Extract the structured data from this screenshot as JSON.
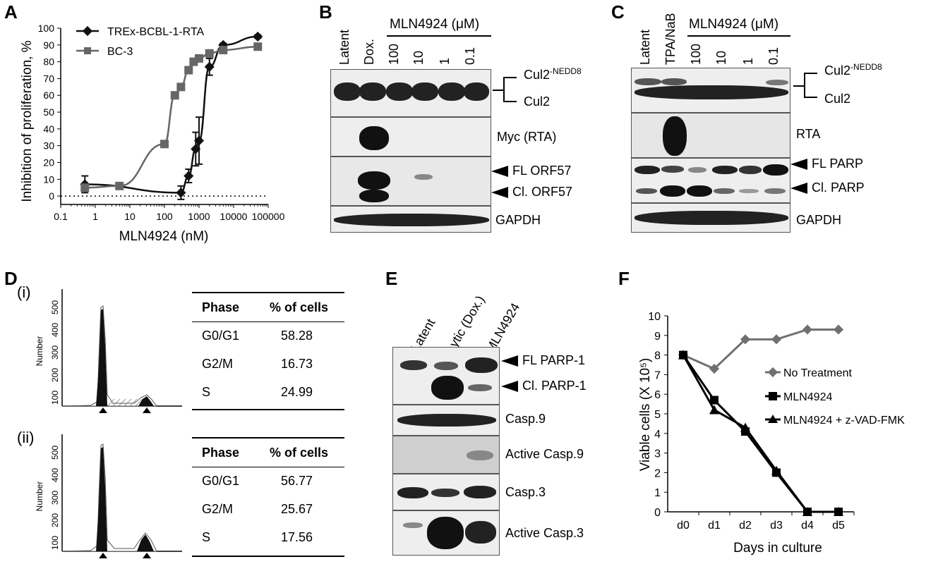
{
  "panels": {
    "a": "A",
    "b": "B",
    "c": "C",
    "d": "D",
    "e": "E",
    "f": "F",
    "d_i": "(i)",
    "d_ii": "(ii)"
  },
  "chart_data": [
    {
      "type": "line",
      "panel": "A",
      "xlabel": "MLN4924 (nM)",
      "ylabel": "Inhibition of proliferation, %",
      "x_scale": "log",
      "xlim": [
        0.1,
        100000
      ],
      "ylim": [
        -5,
        100
      ],
      "x_tick_labels": [
        "0.1",
        "1",
        "10",
        "100",
        "1000",
        "10000",
        "100000"
      ],
      "y_tick_labels": [
        "0",
        "10",
        "20",
        "30",
        "40",
        "50",
        "60",
        "70",
        "80",
        "90",
        "100"
      ],
      "legend_placement": "top-left",
      "series": [
        {
          "name": "TREx-BCBL-1-RTA",
          "color": "#111111",
          "marker": "diamond",
          "x": [
            0.5,
            300,
            500,
            800,
            1000,
            2000,
            5000,
            50000
          ],
          "y": [
            7,
            2,
            12,
            28,
            33,
            77,
            90,
            95
          ],
          "err": [
            5,
            4,
            4,
            10,
            14,
            5,
            1,
            1
          ]
        },
        {
          "name": "BC-3",
          "color": "#666666",
          "marker": "square",
          "x": [
            0.5,
            5,
            100,
            200,
            300,
            500,
            700,
            1000,
            2000,
            5000,
            50000
          ],
          "y": [
            5,
            6,
            31,
            60,
            65,
            75,
            80,
            82,
            85,
            87,
            89
          ]
        }
      ]
    },
    {
      "type": "line",
      "panel": "F",
      "xlabel": "Days in culture",
      "ylabel": "Viable cells (X 10⁵)",
      "categories": [
        "d0",
        "d1",
        "d2",
        "d3",
        "d4",
        "d5"
      ],
      "ylim": [
        0,
        10
      ],
      "y_tick_labels": [
        "0",
        "1",
        "2",
        "3",
        "4",
        "5",
        "6",
        "7",
        "8",
        "9",
        "10"
      ],
      "legend_placement": "right",
      "series": [
        {
          "name": "No Treatment",
          "color": "#707070",
          "marker": "diamond",
          "values": [
            8.0,
            7.3,
            8.8,
            8.8,
            9.3,
            9.3
          ]
        },
        {
          "name": "MLN4924",
          "color": "#000000",
          "marker": "square",
          "values": [
            8.0,
            5.7,
            4.1,
            2.0,
            0.0,
            0.0
          ]
        },
        {
          "name": "MLN4924 + z-VAD-FMK",
          "color": "#000000",
          "marker": "triangle",
          "values": [
            8.0,
            5.2,
            4.3,
            2.1,
            0.0,
            0.0
          ]
        }
      ]
    }
  ],
  "panel_b": {
    "treatment": "MLN4924 (μM)",
    "lanes": [
      "Latent",
      "Dox.",
      "100",
      "10",
      "1",
      "0.1"
    ],
    "cul2_neddylated": "Cul2",
    "nedd8_sup": "-NEDD8",
    "cul2": "Cul2",
    "myc": "Myc (RTA)",
    "fl_orf57": "FL ORF57",
    "cl_orf57": "Cl. ORF57",
    "gapdh": "GAPDH"
  },
  "panel_c": {
    "treatment": "MLN4924 (μM)",
    "lanes": [
      "Latent",
      "TPA/NaB",
      "100",
      "10",
      "1",
      "0.1"
    ],
    "cul2_neddylated": "Cul2",
    "nedd8_sup": "-NEDD8",
    "cul2": "Cul2",
    "rta": "RTA",
    "fl_parp": "FL PARP",
    "cl_parp": "Cl. PARP",
    "gapdh": "GAPDH"
  },
  "panel_d": {
    "ylabel": "Number",
    "y_ticks": [
      "500",
      "400",
      "300",
      "200",
      "100"
    ],
    "table_headers": [
      "Phase",
      "% of cells"
    ],
    "tables": [
      [
        [
          "G0/G1",
          "58.28"
        ],
        [
          "G2/M",
          "16.73"
        ],
        [
          "S",
          "24.99"
        ]
      ],
      [
        [
          "G0/G1",
          "56.77"
        ],
        [
          "G2/M",
          "25.67"
        ],
        [
          "S",
          "17.56"
        ]
      ]
    ]
  },
  "panel_e": {
    "lanes": [
      "Latent",
      "Lytic (Dox.)",
      "MLN4924"
    ],
    "fl_parp1": "FL PARP-1",
    "cl_parp1": "Cl. PARP-1",
    "casp9": "Casp.9",
    "active_casp9": "Active Casp.9",
    "casp3": "Casp.3",
    "active_casp3": "Active Casp.3"
  }
}
